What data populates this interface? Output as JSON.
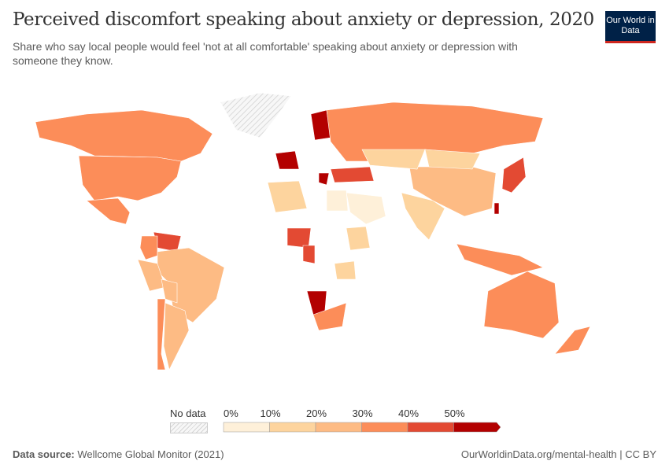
{
  "header": {
    "title": "Perceived discomfort speaking about anxiety or depression, 2020",
    "subtitle": "Share who say local people would feel 'not at all comfortable' speaking about anxiety or depression with someone they know.",
    "logo": "Our World in Data"
  },
  "legend": {
    "no_data_label": "No data",
    "ticks": [
      "0%",
      "10%",
      "20%",
      "30%",
      "40%",
      "50%"
    ],
    "bins": [
      {
        "range": "0-10%",
        "color": "#fef0d9"
      },
      {
        "range": "10-20%",
        "color": "#fdd49e"
      },
      {
        "range": "20-30%",
        "color": "#fdbb84"
      },
      {
        "range": "30-40%",
        "color": "#fc8d59"
      },
      {
        "range": "40-50%",
        "color": "#e34a33"
      },
      {
        "range": ">50%",
        "color": "#b30000"
      }
    ],
    "no_data_color": "#e8e8e8"
  },
  "map_regions": [
    {
      "name": "Canada",
      "color": "#fc8d59"
    },
    {
      "name": "United States",
      "color": "#fc8d59"
    },
    {
      "name": "Mexico",
      "color": "#fc8d59"
    },
    {
      "name": "Greenland",
      "color": "no-data"
    },
    {
      "name": "Venezuela",
      "color": "#e34a33"
    },
    {
      "name": "Colombia",
      "color": "#fc8d59"
    },
    {
      "name": "Brazil",
      "color": "#fdbb84"
    },
    {
      "name": "Peru",
      "color": "#fdbb84"
    },
    {
      "name": "Bolivia",
      "color": "#fdbb84"
    },
    {
      "name": "Chile",
      "color": "#fc8d59"
    },
    {
      "name": "Argentina",
      "color": "#fdbb84"
    },
    {
      "name": "France",
      "color": "#b30000"
    },
    {
      "name": "Finland",
      "color": "#b30000"
    },
    {
      "name": "Russia",
      "color": "#fc8d59"
    },
    {
      "name": "Turkey",
      "color": "#e34a33"
    },
    {
      "name": "Greece",
      "color": "#b30000"
    },
    {
      "name": "China",
      "color": "#fdbb84"
    },
    {
      "name": "Mongolia",
      "color": "#fdd49e"
    },
    {
      "name": "Kazakhstan",
      "color": "#fdd49e"
    },
    {
      "name": "India",
      "color": "#fdd49e"
    },
    {
      "name": "Japan",
      "color": "#e34a33"
    },
    {
      "name": "Taiwan",
      "color": "#b30000"
    },
    {
      "name": "Indonesia",
      "color": "#fc8d59"
    },
    {
      "name": "Saudi Arabia",
      "color": "#fef0d9"
    },
    {
      "name": "Algeria",
      "color": "#fdd49e"
    },
    {
      "name": "Egypt",
      "color": "#fef0d9"
    },
    {
      "name": "Nigeria",
      "color": "#e34a33"
    },
    {
      "name": "Cameroon",
      "color": "#e34a33"
    },
    {
      "name": "Namibia",
      "color": "#b30000"
    },
    {
      "name": "South Africa",
      "color": "#fc8d59"
    },
    {
      "name": "Ethiopia",
      "color": "#fdd49e"
    },
    {
      "name": "Tanzania",
      "color": "#fdd49e"
    },
    {
      "name": "Australia",
      "color": "#fc8d59"
    },
    {
      "name": "New Zealand",
      "color": "#fc8d59"
    }
  ],
  "footer": {
    "source_label": "Data source:",
    "source": "Wellcome Global Monitor (2021)",
    "url": "OurWorldinData.org/mental-health | CC BY"
  }
}
